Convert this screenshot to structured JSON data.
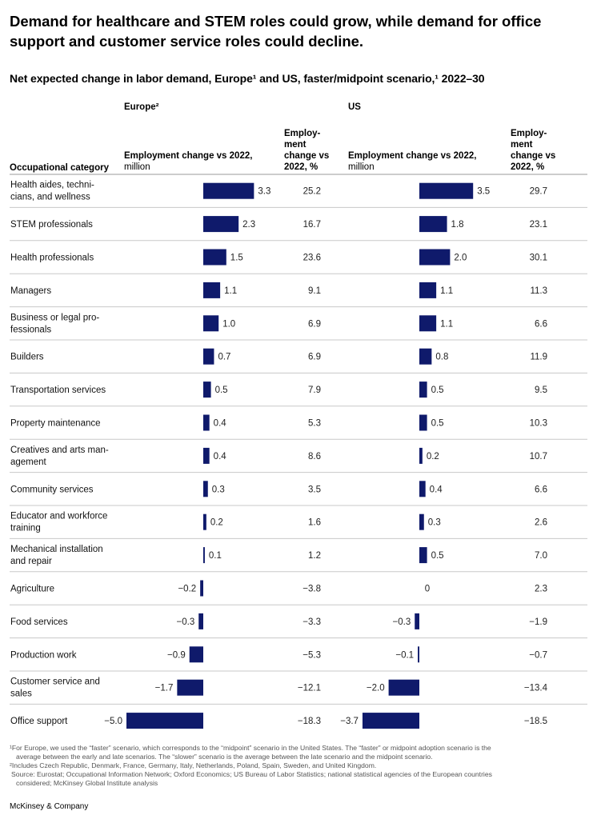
{
  "title": "Demand for healthcare and STEM roles could grow, while demand for office support and customer service roles could decline.",
  "subtitle": "Net expected change in labor demand, Europe¹ and US, faster/midpoint scenario,¹ 2022–30",
  "regions": {
    "europe": "Europe²",
    "us": "US"
  },
  "headers": {
    "category": "Occupational category",
    "change_mil_bold": "Employment change vs 2022,",
    "change_mil_unit": "million",
    "change_pct": [
      "Employ-",
      "ment",
      "change vs",
      "2022, %"
    ]
  },
  "colors": {
    "bar": "#0f1a6b",
    "rule": "#c8c8c8"
  },
  "chart_data": {
    "type": "bar",
    "orientation": "horizontal",
    "title": "Net expected change in labor demand, Europe and US, faster/midpoint scenario, 2022–30",
    "categories": [
      [
        "Health aides, techni-",
        "cians, and wellness"
      ],
      [
        "STEM professionals"
      ],
      [
        "Health professionals"
      ],
      [
        "Managers"
      ],
      [
        "Business or legal pro-",
        "fessionals"
      ],
      [
        "Builders"
      ],
      [
        "Transportation services"
      ],
      [
        "Property maintenance"
      ],
      [
        "Creatives and arts man-",
        "agement"
      ],
      [
        "Community services"
      ],
      [
        "Educator and workforce",
        "training"
      ],
      [
        "Mechanical installation",
        "and repair"
      ],
      [
        "Agriculture"
      ],
      [
        "Food services"
      ],
      [
        "Production work"
      ],
      [
        "Customer service and",
        "sales"
      ],
      [
        "Office support"
      ]
    ],
    "series": [
      {
        "name": "Europe – Employment change vs 2022, million",
        "values": [
          3.3,
          2.3,
          1.5,
          1.1,
          1.0,
          0.7,
          0.5,
          0.4,
          0.4,
          0.3,
          0.2,
          0.1,
          -0.2,
          -0.3,
          -0.9,
          -1.7,
          -5.0
        ],
        "labels": [
          "3.3",
          "2.3",
          "1.5",
          "1.1",
          "1.0",
          "0.7",
          "0.5",
          "0.4",
          "0.4",
          "0.3",
          "0.2",
          "0.1",
          "−0.2",
          "−0.3",
          "−0.9",
          "−1.7",
          "−5.0"
        ]
      },
      {
        "name": "Europe – Employment change vs 2022, %",
        "values": [
          25.2,
          16.7,
          23.6,
          9.1,
          6.9,
          6.9,
          7.9,
          5.3,
          8.6,
          3.5,
          1.6,
          1.2,
          -3.8,
          -3.3,
          -5.3,
          -12.1,
          -18.3
        ],
        "labels": [
          "25.2",
          "16.7",
          "23.6",
          "9.1",
          "6.9",
          "6.9",
          "7.9",
          "5.3",
          "8.6",
          "3.5",
          "1.6",
          "1.2",
          "−3.8",
          "−3.3",
          "−5.3",
          "−12.1",
          "−18.3"
        ]
      },
      {
        "name": "US – Employment change vs 2022, million",
        "values": [
          3.5,
          1.8,
          2.0,
          1.1,
          1.1,
          0.8,
          0.5,
          0.5,
          0.2,
          0.4,
          0.3,
          0.5,
          0,
          -0.3,
          -0.1,
          -2.0,
          -3.7
        ],
        "labels": [
          "3.5",
          "1.8",
          "2.0",
          "1.1",
          "1.1",
          "0.8",
          "0.5",
          "0.5",
          "0.2",
          "0.4",
          "0.3",
          "0.5",
          "0",
          "−0.3",
          "−0.1",
          "−2.0",
          "−3.7"
        ]
      },
      {
        "name": "US – Employment change vs 2022, %",
        "values": [
          29.7,
          23.1,
          30.1,
          11.3,
          6.6,
          11.9,
          9.5,
          10.3,
          10.7,
          6.6,
          2.6,
          7.0,
          2.3,
          -1.9,
          -0.7,
          -13.4,
          -18.5
        ],
        "labels": [
          "29.7",
          "23.1",
          "30.1",
          "11.3",
          "6.6",
          "11.9",
          "9.5",
          "10.3",
          "10.7",
          "6.6",
          "2.6",
          "7.0",
          "2.3",
          "−1.9",
          "−0.7",
          "−13.4",
          "−18.5"
        ]
      }
    ],
    "xlabel": "Employment change vs 2022, million",
    "ylabel": "Occupational category"
  },
  "footnotes": [
    "¹For Europe, we used the “faster” scenario, which corresponds to the “midpoint” scenario in the United States. The “faster” or midpoint adoption scenario is the",
    "average between the early and late scenarios. The “slower” scenario is the average between the late scenario and the midpoint scenario.",
    "²Includes Czech Republic, Denmark, France, Germany, Italy, Netherlands, Poland, Spain, Sweden, and United Kingdom.",
    "Source: Eurostat; Occupational Information Network; Oxford Economics; US Bureau of Labor Statistics; national statistical agencies of the European countries",
    "considered; McKinsey Global Institute analysis"
  ],
  "brand": "McKinsey & Company"
}
